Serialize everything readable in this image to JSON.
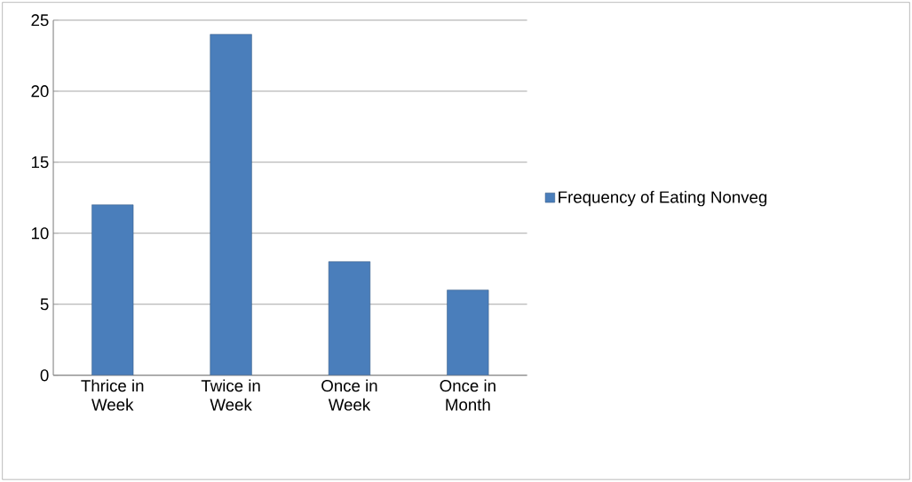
{
  "chart_data": {
    "type": "bar",
    "categories": [
      "Thrice in Week",
      "Twice in Week",
      "Once in Week",
      "Once in Month"
    ],
    "series": [
      {
        "name": "Frequency of Eating Nonveg",
        "color": "#4a7ebb",
        "values": [
          12,
          24,
          8,
          6
        ]
      }
    ],
    "ylim": [
      0,
      25
    ],
    "yticks": [
      0,
      5,
      10,
      15,
      20,
      25
    ],
    "grid": "y",
    "legend": "right"
  }
}
